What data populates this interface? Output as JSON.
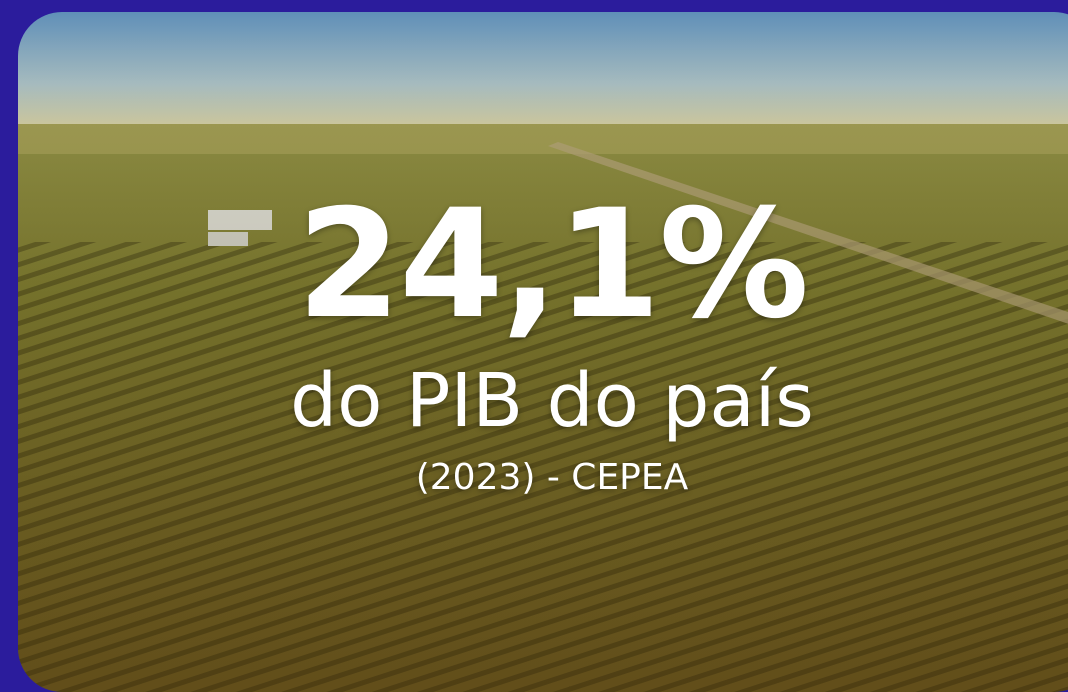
{
  "headline": {
    "figure": "24,1%",
    "caption": "do PIB do país",
    "source": "(2023) - CEPEA"
  }
}
